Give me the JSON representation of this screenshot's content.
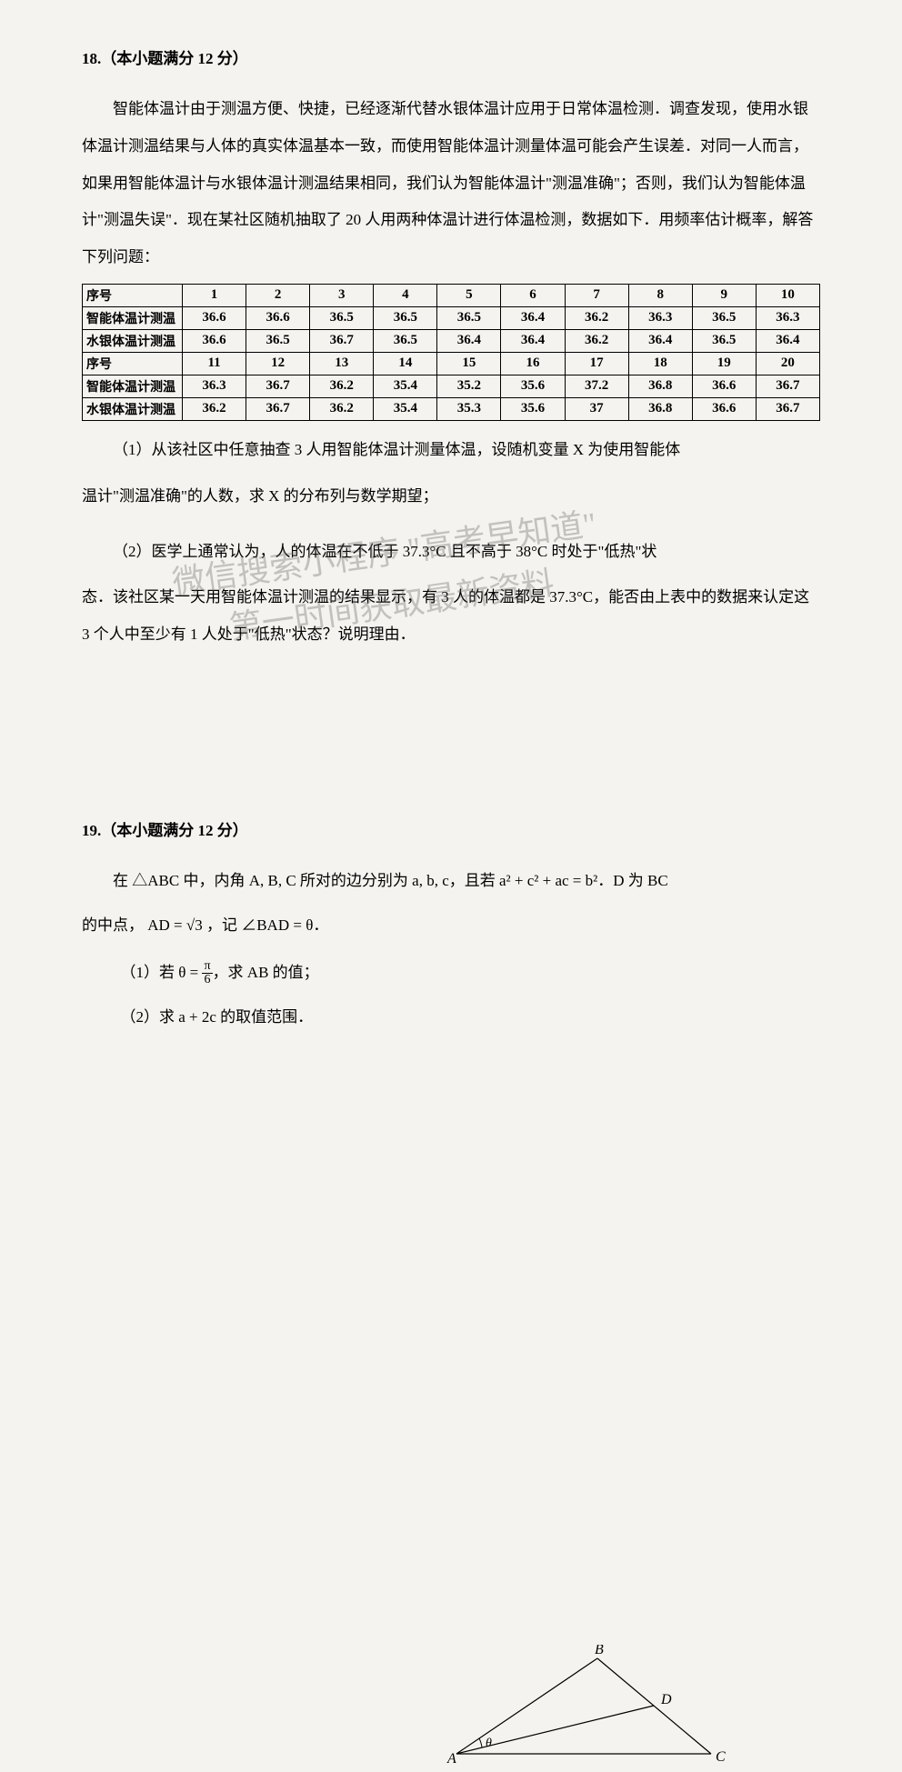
{
  "q18": {
    "header": "18.（本小题满分 12 分）",
    "para1": "智能体温计由于测温方便、快捷，已经逐渐代替水银体温计应用于日常体温检测．调查发现，使用水银体温计测温结果与人体的真实体温基本一致，而使用智能体温计测量体温可能会产生误差．对同一人而言，如果用智能体温计与水银体温计测温结果相同，我们认为智能体温计\"测温准确\"；否则，我们认为智能体温计\"测温失误\"．现在某社区随机抽取了 20 人用两种体温计进行体温检测，数据如下．用频率估计概率，解答下列问题：",
    "table1": {
      "rows": [
        [
          "序号",
          "1",
          "2",
          "3",
          "4",
          "5",
          "6",
          "7",
          "8",
          "9",
          "10"
        ],
        [
          "智能体温计测温",
          "36.6",
          "36.6",
          "36.5",
          "36.5",
          "36.5",
          "36.4",
          "36.2",
          "36.3",
          "36.5",
          "36.3"
        ],
        [
          "水银体温计测温",
          "36.6",
          "36.5",
          "36.7",
          "36.5",
          "36.4",
          "36.4",
          "36.2",
          "36.4",
          "36.5",
          "36.4"
        ],
        [
          "序号",
          "11",
          "12",
          "13",
          "14",
          "15",
          "16",
          "17",
          "18",
          "19",
          "20"
        ],
        [
          "智能体温计测温",
          "36.3",
          "36.7",
          "36.2",
          "35.4",
          "35.2",
          "35.6",
          "37.2",
          "36.8",
          "36.6",
          "36.7"
        ],
        [
          "水银体温计测温",
          "36.2",
          "36.7",
          "36.2",
          "35.4",
          "35.3",
          "35.6",
          "37",
          "36.8",
          "36.6",
          "36.7"
        ]
      ]
    },
    "sub1_a": "（1）从该社区中任意抽查 3 人用智能体温计测量体温，设随机变量 X 为使用智能体",
    "sub1_b": "温计\"测温准确\"的人数，求 X 的分布列与数学期望；",
    "sub2_a": "（2）医学上通常认为，人的体温在不低于 37.3°C 且不高于 38°C 时处于\"低热\"状",
    "sub2_b": "态．该社区某一天用智能体温计测温的结果显示，有 3 人的体温都是 37.3°C，能否由上表中的数据来认定这 3 个人中至少有 1 人处于\"低热\"状态？说明理由．"
  },
  "watermark": {
    "line1": "微信搜索小程序 \"高考早知道\"",
    "line2": "第一时间获取最新资料"
  },
  "q19": {
    "header": "19.（本小题满分 12 分）",
    "para1_a": "在 △ABC 中，内角 A, B, C 所对的边分别为 a, b, c，且若 a² + c² + ac = b²．D 为 BC",
    "para1_b": "的中点， AD = √3 ，记 ∠BAD = θ．",
    "sub1": "（1）若 θ = ",
    "sub1_after": "，求 AB 的值；",
    "sub2": "（2）求 a + 2c 的取值范围．",
    "frac": {
      "num": "π",
      "den": "6"
    },
    "diagram": {
      "points": {
        "A": "A",
        "B": "B",
        "C": "C",
        "D": "D",
        "theta": "θ"
      },
      "stroke": "#000000",
      "strokeWidth": 1.2
    }
  },
  "colors": {
    "background": "#f5f3ef",
    "text": "#000000",
    "watermark": "rgba(100,100,100,0.35)"
  }
}
